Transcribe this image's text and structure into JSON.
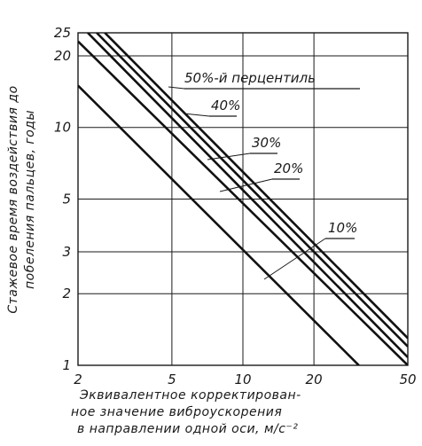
{
  "chart_data": {
    "type": "line",
    "xscale": "log",
    "yscale": "log",
    "xlim": [
      2,
      50
    ],
    "ylim": [
      1,
      25
    ],
    "xticks": [
      2,
      5,
      10,
      20,
      50
    ],
    "yticks": [
      1,
      2,
      3,
      5,
      10,
      20,
      25
    ],
    "grid": true,
    "xlabel": [
      "Эквивалентное корректирован-",
      "ное значение виброускорения",
      "в направлении одной оси, м/с⁻²"
    ],
    "ylabel": [
      "Стажевое время воздействия до",
      "побеления пальцев, годы"
    ],
    "series": [
      {
        "name": "50%-й перцентиль",
        "points": [
          [
            2.6,
            25
          ],
          [
            50,
            1.3
          ]
        ]
      },
      {
        "name": "40%",
        "points": [
          [
            2.4,
            25
          ],
          [
            50,
            1.2
          ]
        ]
      },
      {
        "name": "30%",
        "points": [
          [
            2.2,
            25
          ],
          [
            50,
            1.08
          ]
        ]
      },
      {
        "name": "20%",
        "points": [
          [
            2,
            23
          ],
          [
            50,
            1.0
          ]
        ]
      },
      {
        "name": "10%",
        "points": [
          [
            2,
            15
          ],
          [
            31,
            1.0
          ]
        ]
      }
    ]
  }
}
